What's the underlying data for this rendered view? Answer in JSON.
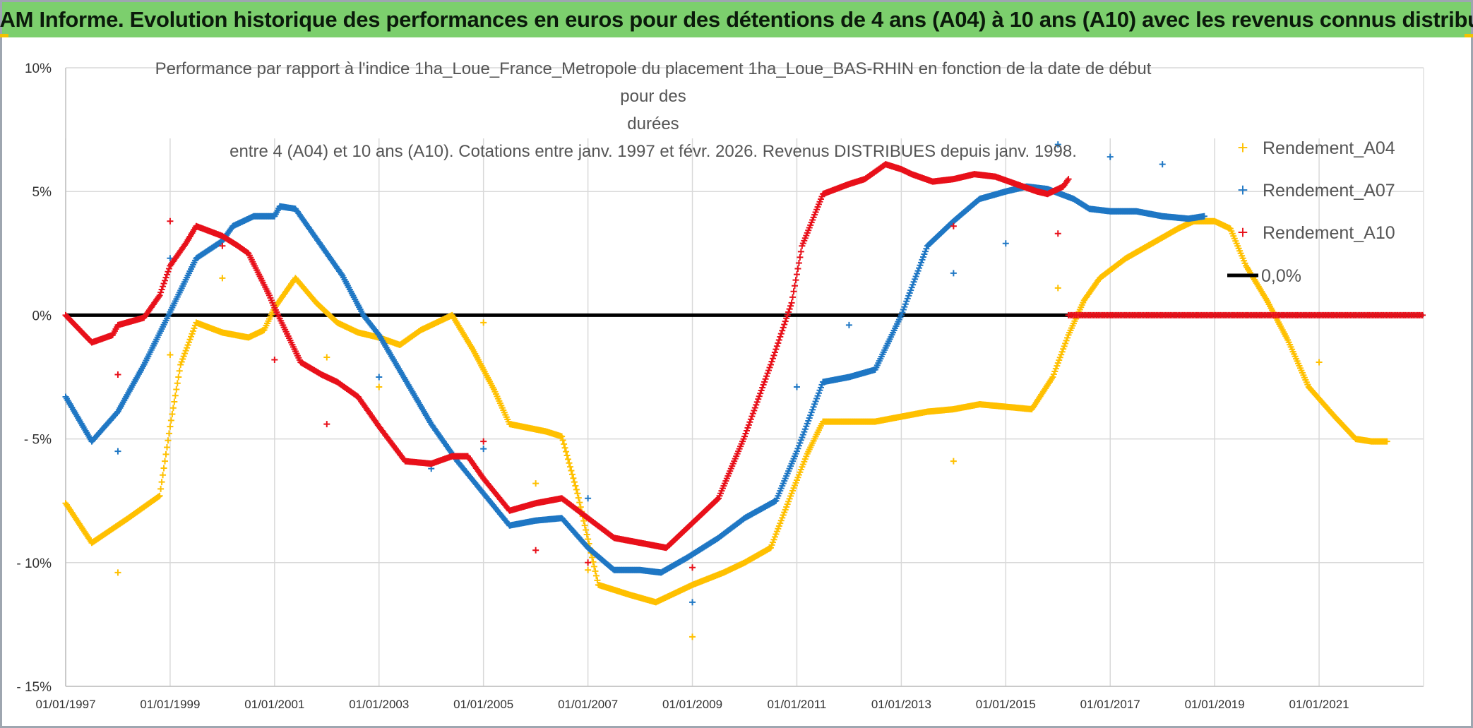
{
  "header": {
    "title": "ADAM Informe. Evolution historique des performances en euros pour des détentions de 4 ans (A04) à 10 ans (A10) avec les revenus connus distribués"
  },
  "colors": {
    "banner": "#7ccf6d",
    "A04": "#ffc000",
    "A07": "#1f77c4",
    "A10": "#e8101a",
    "zero": "#000000",
    "grid": "#d9d9d9"
  },
  "chart_data": {
    "type": "scatter",
    "title_lines": [
      "Performance par rapport à l'indice 1ha_Loue_France_Metropole  du placement 1ha_Loue_BAS-RHIN en fonction de la date de début pour des",
      "durées",
      "entre 4 (A04) et 10 ans (A10). Cotations entre janv. 1997 et févr. 2026. Revenus DISTRIBUES depuis janv. 1998."
    ],
    "xlabel": "",
    "ylabel": "",
    "xlim": [
      1997.0,
      2023.0
    ],
    "ylim": [
      -15,
      10
    ],
    "x_ticks": [
      {
        "value": 1997,
        "label": "01/01/1997"
      },
      {
        "value": 1999,
        "label": "01/01/1999"
      },
      {
        "value": 2001,
        "label": "01/01/2001"
      },
      {
        "value": 2003,
        "label": "01/01/2003"
      },
      {
        "value": 2005,
        "label": "01/01/2005"
      },
      {
        "value": 2007,
        "label": "01/01/2007"
      },
      {
        "value": 2009,
        "label": "01/01/2009"
      },
      {
        "value": 2011,
        "label": "01/01/2011"
      },
      {
        "value": 2013,
        "label": "01/01/2013"
      },
      {
        "value": 2015,
        "label": "01/01/2015"
      },
      {
        "value": 2017,
        "label": "01/01/2017"
      },
      {
        "value": 2019,
        "label": "01/01/2019"
      },
      {
        "value": 2021,
        "label": "01/01/2021"
      }
    ],
    "y_ticks": [
      {
        "value": 10,
        "label": "10%"
      },
      {
        "value": 5,
        "label": "5%"
      },
      {
        "value": 0,
        "label": "0%"
      },
      {
        "value": -5,
        "label": "- 5%"
      },
      {
        "value": -10,
        "label": "- 10%"
      },
      {
        "value": -15,
        "label": "- 15%"
      }
    ],
    "legend": [
      "Rendement_A04",
      "Rendement_A07",
      "Rendement_A10",
      "0,0%"
    ],
    "legend_position": "right",
    "grid": true,
    "series": [
      {
        "name": "Rendement_A04",
        "color": "#ffc000",
        "points": [
          [
            1997.0,
            -7.6
          ],
          [
            1997.5,
            -9.2
          ],
          [
            1998.2,
            -8.2
          ],
          [
            1998.8,
            -7.3
          ],
          [
            1999.0,
            -4.5
          ],
          [
            1999.2,
            -2.0
          ],
          [
            1999.5,
            -0.3
          ],
          [
            2000.0,
            -0.7
          ],
          [
            2000.5,
            -0.9
          ],
          [
            2000.8,
            -0.6
          ],
          [
            2001.0,
            0.3
          ],
          [
            2001.4,
            1.5
          ],
          [
            2001.8,
            0.5
          ],
          [
            2002.2,
            -0.3
          ],
          [
            2002.6,
            -0.7
          ],
          [
            2003.0,
            -0.9
          ],
          [
            2003.4,
            -1.2
          ],
          [
            2003.8,
            -0.6
          ],
          [
            2004.4,
            0.0
          ],
          [
            2004.8,
            -1.4
          ],
          [
            2005.2,
            -3.0
          ],
          [
            2005.5,
            -4.4
          ],
          [
            2006.2,
            -4.7
          ],
          [
            2006.5,
            -4.9
          ],
          [
            2006.8,
            -7.2
          ],
          [
            2007.2,
            -10.9
          ],
          [
            2007.8,
            -11.3
          ],
          [
            2008.3,
            -11.6
          ],
          [
            2009.0,
            -10.9
          ],
          [
            2009.6,
            -10.4
          ],
          [
            2010.0,
            -10.0
          ],
          [
            2010.5,
            -9.4
          ],
          [
            2010.9,
            -7.2
          ],
          [
            2011.2,
            -5.6
          ],
          [
            2011.5,
            -4.3
          ],
          [
            2012.0,
            -4.3
          ],
          [
            2012.5,
            -4.3
          ],
          [
            2013.0,
            -4.1
          ],
          [
            2013.5,
            -3.9
          ],
          [
            2014.0,
            -3.8
          ],
          [
            2014.5,
            -3.6
          ],
          [
            2015.0,
            -3.7
          ],
          [
            2015.5,
            -3.8
          ],
          [
            2015.9,
            -2.5
          ],
          [
            2016.2,
            -0.8
          ],
          [
            2016.5,
            0.6
          ],
          [
            2016.8,
            1.5
          ],
          [
            2017.3,
            2.3
          ],
          [
            2017.8,
            2.9
          ],
          [
            2018.3,
            3.5
          ],
          [
            2018.6,
            3.8
          ],
          [
            2019.0,
            3.8
          ],
          [
            2019.3,
            3.5
          ],
          [
            2019.6,
            2.0
          ],
          [
            2020.0,
            0.6
          ],
          [
            2020.4,
            -1.0
          ],
          [
            2020.8,
            -2.9
          ],
          [
            2021.3,
            -4.1
          ],
          [
            2021.7,
            -5.0
          ],
          [
            2022.0,
            -5.1
          ],
          [
            2022.3,
            -5.1
          ]
        ],
        "scattered": [
          [
            1998.0,
            -10.4
          ],
          [
            1999.0,
            -1.6
          ],
          [
            2000.0,
            1.5
          ],
          [
            2002.0,
            -1.7
          ],
          [
            2003.0,
            -2.9
          ],
          [
            2005.0,
            -0.3
          ],
          [
            2006.0,
            -6.8
          ],
          [
            2007.0,
            -10.3
          ],
          [
            2009.0,
            -13.0
          ],
          [
            2014.0,
            -5.9
          ],
          [
            2016.0,
            1.1
          ],
          [
            2021.0,
            -1.9
          ]
        ]
      },
      {
        "name": "Rendement_A07",
        "color": "#1f77c4",
        "points": [
          [
            1997.0,
            -3.3
          ],
          [
            1997.5,
            -5.1
          ],
          [
            1998.0,
            -3.9
          ],
          [
            1998.5,
            -2.0
          ],
          [
            1998.9,
            -0.3
          ],
          [
            1999.2,
            1.0
          ],
          [
            1999.5,
            2.3
          ],
          [
            2000.0,
            3.0
          ],
          [
            2000.2,
            3.6
          ],
          [
            2000.6,
            4.0
          ],
          [
            2001.0,
            4.0
          ],
          [
            2001.1,
            4.4
          ],
          [
            2001.4,
            4.3
          ],
          [
            2001.9,
            2.8
          ],
          [
            2002.3,
            1.6
          ],
          [
            2002.7,
            0.0
          ],
          [
            2003.0,
            -0.8
          ],
          [
            2003.5,
            -2.6
          ],
          [
            2004.0,
            -4.4
          ],
          [
            2004.5,
            -5.9
          ],
          [
            2005.0,
            -7.2
          ],
          [
            2005.5,
            -8.5
          ],
          [
            2006.0,
            -8.3
          ],
          [
            2006.5,
            -8.2
          ],
          [
            2007.0,
            -9.4
          ],
          [
            2007.5,
            -10.3
          ],
          [
            2008.0,
            -10.3
          ],
          [
            2008.4,
            -10.4
          ],
          [
            2008.9,
            -9.8
          ],
          [
            2009.5,
            -9.0
          ],
          [
            2010.0,
            -8.2
          ],
          [
            2010.6,
            -7.5
          ],
          [
            2011.0,
            -5.5
          ],
          [
            2011.5,
            -2.7
          ],
          [
            2012.0,
            -2.5
          ],
          [
            2012.5,
            -2.2
          ],
          [
            2013.0,
            0.0
          ],
          [
            2013.5,
            2.8
          ],
          [
            2014.0,
            3.8
          ],
          [
            2014.5,
            4.7
          ],
          [
            2015.0,
            5.0
          ],
          [
            2015.4,
            5.2
          ],
          [
            2015.8,
            5.1
          ],
          [
            2016.3,
            4.7
          ],
          [
            2016.6,
            4.3
          ],
          [
            2017.0,
            4.2
          ],
          [
            2017.5,
            4.2
          ],
          [
            2018.0,
            4.0
          ],
          [
            2018.5,
            3.9
          ],
          [
            2018.8,
            4.0
          ]
        ],
        "scattered": [
          [
            1998.0,
            -5.5
          ],
          [
            1999.0,
            2.3
          ],
          [
            2003.0,
            -2.5
          ],
          [
            2004.0,
            -6.2
          ],
          [
            2005.0,
            -5.4
          ],
          [
            2007.0,
            -7.4
          ],
          [
            2009.0,
            -11.6
          ],
          [
            2011.0,
            -2.9
          ],
          [
            2012.0,
            -0.4
          ],
          [
            2014.0,
            1.7
          ],
          [
            2015.0,
            2.9
          ],
          [
            2016.0,
            6.9
          ],
          [
            2017.0,
            6.4
          ],
          [
            2018.0,
            6.1
          ]
        ]
      },
      {
        "name": "Rendement_A10",
        "color": "#e8101a",
        "points": [
          [
            1997.0,
            0.0
          ],
          [
            1997.5,
            -1.1
          ],
          [
            1997.9,
            -0.8
          ],
          [
            1998.0,
            -0.4
          ],
          [
            1998.5,
            -0.1
          ],
          [
            1998.8,
            0.8
          ],
          [
            1999.0,
            2.0
          ],
          [
            1999.3,
            2.9
          ],
          [
            1999.5,
            3.6
          ],
          [
            2000.0,
            3.2
          ],
          [
            2000.3,
            2.8
          ],
          [
            2000.5,
            2.5
          ],
          [
            2000.9,
            0.8
          ],
          [
            2001.0,
            0.3
          ],
          [
            2001.5,
            -1.9
          ],
          [
            2001.9,
            -2.4
          ],
          [
            2002.2,
            -2.7
          ],
          [
            2002.6,
            -3.3
          ],
          [
            2003.0,
            -4.5
          ],
          [
            2003.5,
            -5.9
          ],
          [
            2004.0,
            -6.0
          ],
          [
            2004.4,
            -5.7
          ],
          [
            2004.7,
            -5.7
          ],
          [
            2005.0,
            -6.6
          ],
          [
            2005.5,
            -7.9
          ],
          [
            2006.0,
            -7.6
          ],
          [
            2006.5,
            -7.4
          ],
          [
            2007.0,
            -8.2
          ],
          [
            2007.5,
            -9.0
          ],
          [
            2008.0,
            -9.2
          ],
          [
            2008.5,
            -9.4
          ],
          [
            2009.0,
            -8.4
          ],
          [
            2009.5,
            -7.4
          ],
          [
            2010.0,
            -4.9
          ],
          [
            2010.5,
            -2.0
          ],
          [
            2010.9,
            0.5
          ],
          [
            2011.1,
            2.8
          ],
          [
            2011.5,
            4.9
          ],
          [
            2012.0,
            5.3
          ],
          [
            2012.3,
            5.5
          ],
          [
            2012.7,
            6.1
          ],
          [
            2013.0,
            5.9
          ],
          [
            2013.2,
            5.7
          ],
          [
            2013.6,
            5.4
          ],
          [
            2014.0,
            5.5
          ],
          [
            2014.4,
            5.7
          ],
          [
            2014.8,
            5.6
          ],
          [
            2015.2,
            5.3
          ],
          [
            2015.6,
            5.0
          ],
          [
            2015.8,
            4.9
          ],
          [
            2016.1,
            5.2
          ],
          [
            2016.2,
            5.5
          ]
        ],
        "scattered": [
          [
            1998.0,
            -2.4
          ],
          [
            1999.0,
            3.8
          ],
          [
            2000.0,
            2.8
          ],
          [
            2001.0,
            -1.8
          ],
          [
            2002.0,
            -4.4
          ],
          [
            2005.0,
            -5.1
          ],
          [
            2006.0,
            -9.5
          ],
          [
            2007.0,
            -10.0
          ],
          [
            2009.0,
            -10.2
          ],
          [
            2014.0,
            3.6
          ],
          [
            2016.0,
            3.3
          ]
        ],
        "zero_after": [
          2016.2,
          2023.0
        ]
      },
      {
        "name": "0,0%",
        "color": "#000000",
        "constant": 0.0
      }
    ]
  }
}
